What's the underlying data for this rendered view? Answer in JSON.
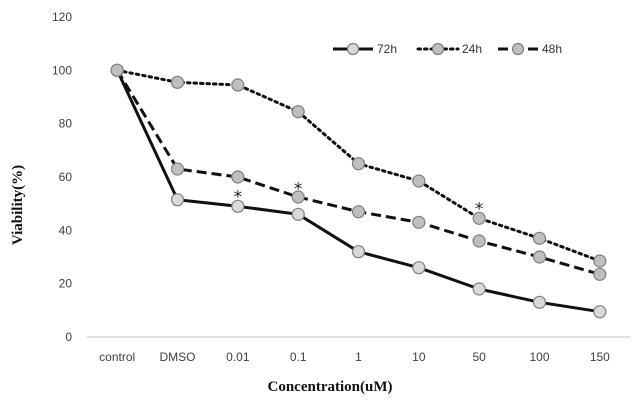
{
  "chart_data": {
    "type": "line",
    "categories": [
      "control",
      "DMSO",
      "0.01",
      "0.1",
      "1",
      "10",
      "50",
      "100",
      "150"
    ],
    "xlabel": "Concentration(uM)",
    "ylabel": "Viability(%)",
    "ylim": [
      0,
      120
    ],
    "yticks": [
      "0",
      "20",
      "40",
      "60",
      "80",
      "100",
      "120"
    ],
    "grid": false,
    "legend_position": "top-right",
    "series": [
      {
        "name": "72h",
        "style": "solid",
        "color": "#111111",
        "marker_fill": "#d9d9d9",
        "values": [
          100,
          51.5,
          49,
          46,
          32,
          26,
          18,
          13,
          9.5
        ]
      },
      {
        "name": "24h",
        "style": "dotted",
        "color": "#111111",
        "marker_fill": "#bfbfbf",
        "values": [
          100,
          95.5,
          94.5,
          84.5,
          65,
          58.5,
          44.5,
          37,
          28.5
        ]
      },
      {
        "name": "48h",
        "style": "dashed",
        "color": "#111111",
        "marker_fill": "#bfbfbf",
        "values": [
          100,
          63,
          60,
          52.5,
          47,
          43,
          36,
          30,
          23.5
        ]
      }
    ],
    "annotations": [
      {
        "text": "*",
        "category": "0.01",
        "y": 53.5
      },
      {
        "text": "*",
        "category": "0.1",
        "y": 56.5
      },
      {
        "text": "*",
        "category": "50",
        "y": 49
      }
    ]
  }
}
